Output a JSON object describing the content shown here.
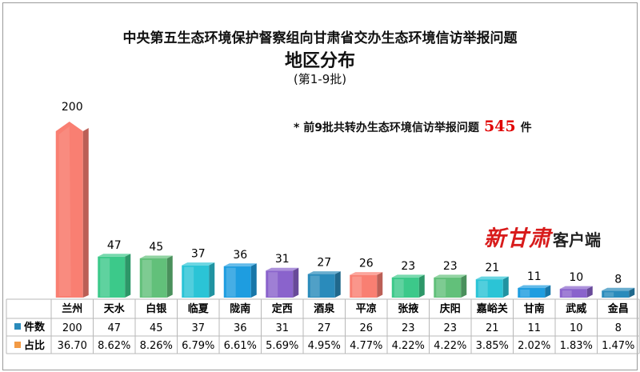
{
  "chart_data": {
    "type": "bar",
    "title": "中央第五生态环境保护督察组向甘肃省交办生态环境信访举报问题",
    "subtitle": "地区分布",
    "batch": "(第1-9批)",
    "annotation": {
      "prefix": "* 前9批共转办生态环境信访举报问题",
      "total": "545",
      "suffix": "件"
    },
    "categories": [
      "兰州",
      "天水",
      "白银",
      "临夏",
      "陇南",
      "定西",
      "酒泉",
      "平凉",
      "张掖",
      "庆阳",
      "嘉峪关",
      "甘南",
      "武威",
      "金昌"
    ],
    "values": [
      200,
      47,
      45,
      37,
      36,
      31,
      27,
      26,
      23,
      23,
      21,
      11,
      10,
      8
    ],
    "percent_labels": [
      "36.70",
      "8.62%",
      "8.26%",
      "6.79%",
      "6.61%",
      "5.69%",
      "4.95%",
      "4.77%",
      "4.22%",
      "4.22%",
      "3.85%",
      "2.02%",
      "1.83%",
      "1.47%"
    ],
    "row_labels": {
      "count": "件数",
      "percent": "占比"
    },
    "bar_colors": [
      "#f97f72",
      "#3cc98a",
      "#62c07a",
      "#2bc4d6",
      "#1e9de0",
      "#8a63cc",
      "#2a8bbb",
      "#f97f72",
      "#3cc98a",
      "#62c07a",
      "#2bc4d6",
      "#1e9de0",
      "#8a63cc",
      "#2a8bbb"
    ],
    "legend_colors": {
      "count": "#2a8bbb",
      "percent": "#f29a45"
    },
    "grid": false,
    "ylim": [
      0,
      200
    ]
  },
  "watermark": {
    "logo": "新甘肃",
    "text": "客户端"
  }
}
